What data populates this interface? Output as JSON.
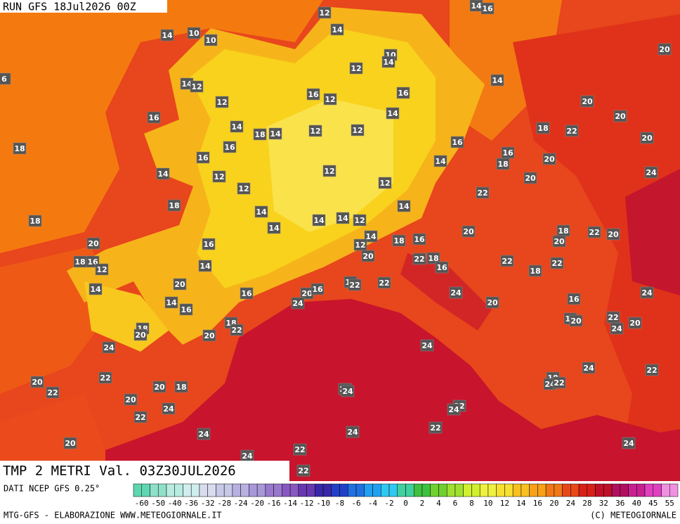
{
  "header": {
    "run": "RUN GFS 18Jul2026 00Z"
  },
  "title": "TMP 2 METRI Val. 03Z30JUL2026",
  "source": "DATI NCEP GFS 0.25°",
  "footer": {
    "left": "MTG-GFS - ELABORAZIONE WWW.METEOGIORNALE.IT",
    "right": "(C) METEOGIORNALE"
  },
  "colorbar": {
    "labels": [
      -60,
      -50,
      -40,
      -36,
      -32,
      -28,
      -24,
      -20,
      -16,
      -14,
      -12,
      -10,
      -8,
      -6,
      -4,
      -2,
      0,
      2,
      4,
      6,
      8,
      10,
      12,
      14,
      16,
      20,
      24,
      28,
      32,
      36,
      40,
      45,
      55
    ],
    "colors": [
      "#5fd6b0",
      "#8fe0c8",
      "#b8ece0",
      "#d0eeee",
      "#d8dcec",
      "#c8c8e8",
      "#b8b0e0",
      "#a898d8",
      "#9878cc",
      "#8858c0",
      "#6838b0",
      "#3828a8",
      "#2040c8",
      "#2070e0",
      "#20a0f0",
      "#30c8f0",
      "#40d0a0",
      "#40c040",
      "#70d030",
      "#a0e030",
      "#d0f030",
      "#f0f040",
      "#f8e030",
      "#f8c020",
      "#f8a018",
      "#f07818",
      "#e84818",
      "#d82018",
      "#c01028",
      "#b01060",
      "#c82090",
      "#e040c0",
      "#f090e0"
    ]
  },
  "map_labels": [
    12,
    14,
    16,
    14,
    10,
    10,
    14,
    10,
    14,
    6,
    14,
    12,
    12,
    14,
    20,
    16,
    12,
    16,
    12,
    14,
    20,
    20,
    16,
    14,
    18,
    14,
    12,
    12,
    18,
    22,
    20,
    18,
    16,
    16,
    16,
    16,
    14,
    18,
    20,
    14,
    12,
    12,
    20,
    24,
    12,
    12,
    22,
    18,
    14,
    14,
    18,
    14,
    14,
    12,
    14,
    18,
    22,
    20,
    20,
    14,
    20,
    20,
    16,
    12,
    18,
    16,
    18,
    16,
    12,
    20,
    22,
    18,
    22,
    14,
    16,
    18,
    22,
    20,
    14,
    20,
    16,
    16,
    22,
    22,
    16,
    24,
    14,
    16,
    24,
    24,
    20,
    16,
    22,
    12,
    20,
    20,
    24,
    18,
    22,
    18,
    20,
    20,
    24,
    24,
    24,
    22,
    22,
    20,
    18,
    24,
    22,
    20,
    18,
    22,
    24,
    24,
    20,
    22,
    24,
    24,
    22,
    22,
    24,
    24,
    20,
    22,
    24,
    24,
    22
  ]
}
